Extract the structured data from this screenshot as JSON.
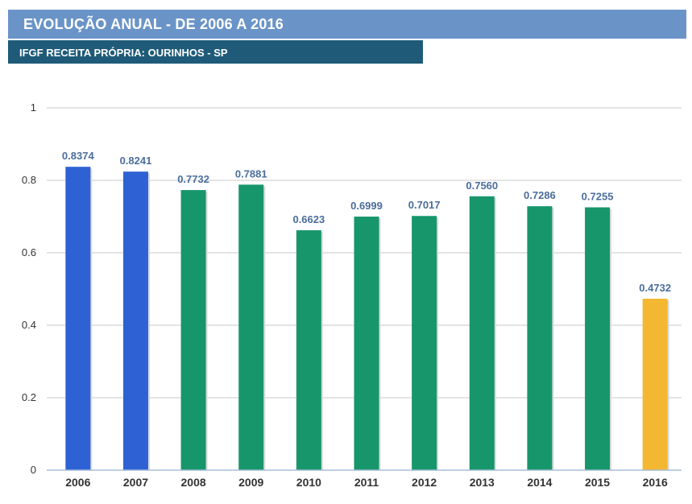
{
  "header": {
    "title": "EVOLUÇÃO ANUAL - DE 2006 A 2016",
    "subtitle": "IFGF RECEITA PRÓPRIA: OURINHOS - SP"
  },
  "chart_data": {
    "type": "bar",
    "categories": [
      "2006",
      "2007",
      "2008",
      "2009",
      "2010",
      "2011",
      "2012",
      "2013",
      "2014",
      "2015",
      "2016"
    ],
    "values": [
      0.8374,
      0.8241,
      0.7732,
      0.7881,
      0.6623,
      0.6999,
      0.7017,
      0.756,
      0.7286,
      0.7255,
      0.4732
    ],
    "value_labels": [
      "0.8374",
      "0.8241",
      "0.7732",
      "0.7881",
      "0.6623",
      "0.6999",
      "0.7017",
      "0.7560",
      "0.7286",
      "0.7255",
      "0.4732"
    ],
    "colors": [
      "#2e62d4",
      "#2e62d4",
      "#17966b",
      "#17966b",
      "#17966b",
      "#17966b",
      "#17966b",
      "#17966b",
      "#17966b",
      "#17966b",
      "#f4b731"
    ],
    "ylim": [
      0,
      1
    ],
    "yticks": [
      0,
      0.2,
      0.4,
      0.6,
      0.8,
      1
    ],
    "ytick_labels": [
      "0",
      "0.2",
      "0.4",
      "0.6",
      "0.8",
      "1"
    ],
    "grid": true,
    "legend": "none",
    "label_color": "#4a6d9c",
    "grid_color": "#c8c8c8"
  }
}
